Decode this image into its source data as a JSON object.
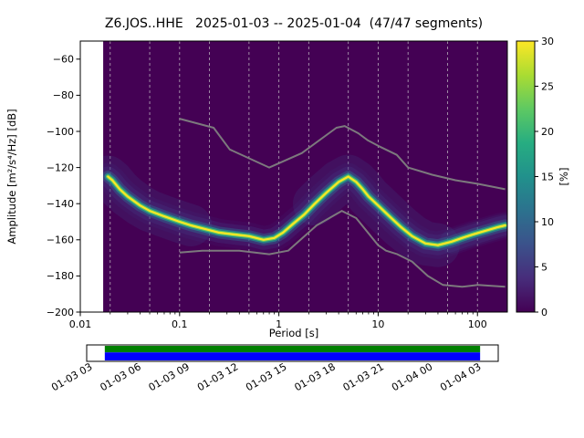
{
  "chart_data": {
    "type": "heatmap",
    "subtype": "probabilistic-power-spectral-density",
    "title": "Z6.JOS..HHE   2025-01-03 -- 2025-01-04  (47/47 segments)",
    "station": "Z6.JOS..HHE",
    "date_range": "2025-01-03 -- 2025-01-04",
    "segments": "47/47",
    "xlabel": "Period [s]",
    "ylabel": "Amplitude [m²/s⁴/Hz] [dB]",
    "xscale": "log",
    "xlim": [
      0.01,
      200
    ],
    "ylim": [
      -200,
      -50
    ],
    "xticks": {
      "values": [
        0.01,
        0.1,
        1,
        10,
        100
      ],
      "labels": [
        "0.01",
        "0.1",
        "1",
        "10",
        "100"
      ]
    },
    "yticks": {
      "values": [
        -60,
        -80,
        -100,
        -120,
        -140,
        -160,
        -180,
        -200
      ],
      "labels": [
        "−60",
        "−80",
        "−100",
        "−120",
        "−140",
        "−160",
        "−180",
        "−200"
      ]
    },
    "grid": {
      "periods": [
        0.02,
        0.05,
        0.1,
        0.2,
        0.5,
        1,
        2,
        5,
        10,
        20,
        50,
        100
      ],
      "style": "dashed",
      "color": "#cccccc",
      "opacity": 0.75
    },
    "histogram_background": "#440154",
    "data_period_range": [
      0.017,
      196
    ],
    "psd_mode_ridge": {
      "points": [
        [
          0.019,
          -125
        ],
        [
          0.021,
          -127
        ],
        [
          0.025,
          -132
        ],
        [
          0.03,
          -136
        ],
        [
          0.04,
          -141
        ],
        [
          0.05,
          -144
        ],
        [
          0.07,
          -147
        ],
        [
          0.1,
          -150
        ],
        [
          0.13,
          -152
        ],
        [
          0.18,
          -154
        ],
        [
          0.25,
          -156
        ],
        [
          0.35,
          -157
        ],
        [
          0.5,
          -158
        ],
        [
          0.7,
          -160
        ],
        [
          0.9,
          -159
        ],
        [
          1.1,
          -156
        ],
        [
          1.4,
          -151
        ],
        [
          1.8,
          -146
        ],
        [
          2.3,
          -140
        ],
        [
          3.0,
          -134
        ],
        [
          4.0,
          -128
        ],
        [
          5.0,
          -125
        ],
        [
          6.0,
          -128
        ],
        [
          7.0,
          -132
        ],
        [
          8.0,
          -136
        ],
        [
          10.0,
          -141
        ],
        [
          13.0,
          -147
        ],
        [
          17.0,
          -153
        ],
        [
          22.0,
          -158
        ],
        [
          30.0,
          -162
        ],
        [
          40.0,
          -163
        ],
        [
          55.0,
          -161
        ],
        [
          70.0,
          -159
        ],
        [
          90.0,
          -157
        ],
        [
          120.0,
          -155
        ],
        [
          160.0,
          -153
        ],
        [
          190.0,
          -152
        ]
      ]
    },
    "ridge_layers": [
      {
        "color": "#443983",
        "width": 22,
        "opacity": 0.3
      },
      {
        "color": "#31688e",
        "width": 13,
        "opacity": 0.45
      },
      {
        "color": "#21918c",
        "width": 8,
        "opacity": 0.75
      },
      {
        "color": "#5ec962",
        "width": 4.5,
        "opacity": 0.95
      },
      {
        "color": "#fde725",
        "width": 2.2,
        "opacity": 1
      }
    ],
    "halos": [
      {
        "range": [
          0.017,
          200
        ],
        "width": 30,
        "color": "#46327e",
        "opacity": 0.15
      },
      {
        "range": [
          0.017,
          0.13
        ],
        "width": 46,
        "color": "#3b528b",
        "opacity": 0.2
      },
      {
        "range": [
          2.2,
          48
        ],
        "width": 48,
        "color": "#3b528b",
        "opacity": 0.2
      },
      {
        "range": [
          55,
          200
        ],
        "width": 26,
        "color": "#3b528b",
        "opacity": 0.16
      }
    ],
    "noise_models": {
      "color": "#808080",
      "high": [
        [
          0.1,
          -93
        ],
        [
          0.22,
          -98
        ],
        [
          0.32,
          -110
        ],
        [
          0.8,
          -120
        ],
        [
          1.7,
          -112
        ],
        [
          3.8,
          -98
        ],
        [
          4.6,
          -97
        ],
        [
          6.3,
          -101
        ],
        [
          7.9,
          -105
        ],
        [
          10.0,
          -108
        ],
        [
          15.4,
          -113
        ],
        [
          20.0,
          -120
        ],
        [
          35.0,
          -124
        ],
        [
          60.0,
          -127
        ],
        [
          100.0,
          -129
        ],
        [
          190.0,
          -132
        ]
      ],
      "low": [
        [
          0.1,
          -167
        ],
        [
          0.17,
          -166
        ],
        [
          0.4,
          -166
        ],
        [
          0.8,
          -168
        ],
        [
          1.24,
          -166
        ],
        [
          2.4,
          -152
        ],
        [
          4.3,
          -144
        ],
        [
          6.0,
          -148
        ],
        [
          10.0,
          -163
        ],
        [
          12.0,
          -166
        ],
        [
          15.6,
          -168
        ],
        [
          21.9,
          -172
        ],
        [
          31.6,
          -180
        ],
        [
          45.0,
          -185
        ],
        [
          70.0,
          -186
        ],
        [
          101.0,
          -185
        ],
        [
          190.0,
          -186
        ]
      ]
    },
    "colorbar": {
      "label": "[%]",
      "range": [
        0,
        30
      ],
      "tick_values": [
        0,
        5,
        10,
        15,
        20,
        25,
        30
      ],
      "tick_labels": [
        "0",
        "5",
        "10",
        "15",
        "20",
        "25",
        "30"
      ],
      "colors": [
        "#440154",
        "#472d7b",
        "#3b528b",
        "#2c728e",
        "#21918c",
        "#27ad81",
        "#5ec962",
        "#aadc32",
        "#fde725"
      ]
    }
  },
  "time_axis": {
    "labels": [
      "01-03 03",
      "01-03 06",
      "01-03 09",
      "01-03 12",
      "01-03 15",
      "01-03 18",
      "01-03 21",
      "01-04 00",
      "01-04 03"
    ],
    "rotation_deg": 30,
    "coverage_bar": {
      "border": "#000000",
      "background": "#ffffff",
      "top_color": "#008000",
      "bottom_color": "#0000ff",
      "data_start_frac": 0.044,
      "data_end_frac": 0.956,
      "top_height_frac": 0.45
    }
  }
}
